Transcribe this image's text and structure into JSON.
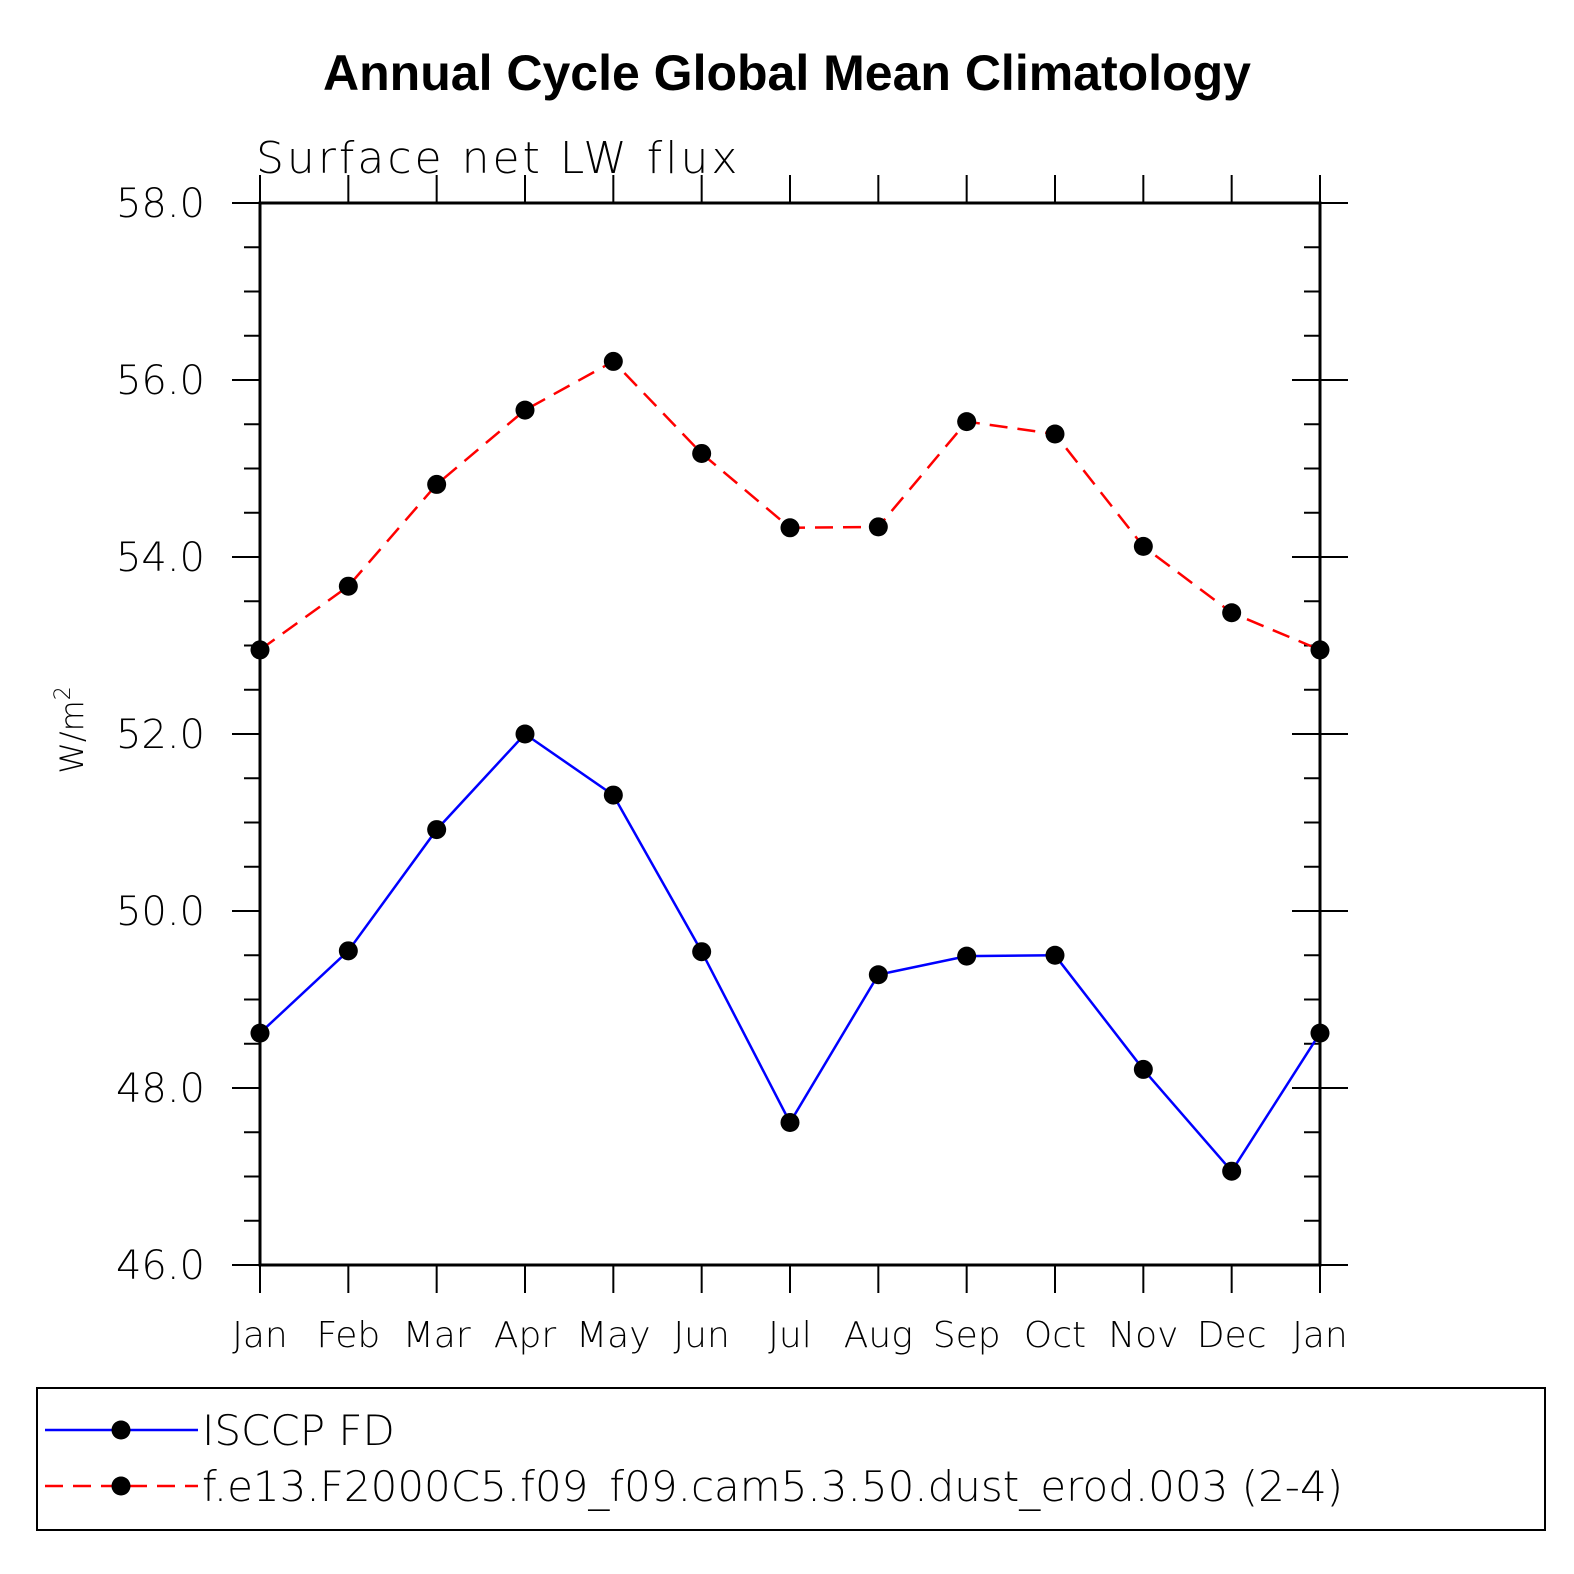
{
  "chart_data": {
    "type": "line",
    "title": "Annual Cycle Global Mean Climatology",
    "subtitle": "Surface net LW flux",
    "ylabel": "W/m",
    "ylabel_superscript": "2",
    "xlabel": "",
    "categories": [
      "Jan",
      "Feb",
      "Mar",
      "Apr",
      "May",
      "Jun",
      "Jul",
      "Aug",
      "Sep",
      "Oct",
      "Nov",
      "Dec",
      "Jan"
    ],
    "ylim": [
      46.0,
      58.0
    ],
    "yticks": [
      "46.0",
      "48.0",
      "50.0",
      "52.0",
      "54.0",
      "56.0",
      "58.0"
    ],
    "ytick_values": [
      46,
      48,
      50,
      52,
      54,
      56,
      58
    ],
    "grid": false,
    "legend_position": "bottom",
    "series": [
      {
        "name": "ISCCP FD",
        "color": "#0000ff",
        "dash": "solid",
        "values": [
          48.62,
          49.55,
          50.92,
          52.0,
          51.31,
          49.54,
          47.61,
          49.28,
          49.49,
          49.5,
          48.21,
          47.06,
          48.62
        ]
      },
      {
        "name": "f.e13.F2000C5.f09_f09.cam5.3.50.dust_erod.003 (2-4)",
        "color": "#ff0000",
        "dash": "dashed",
        "values": [
          52.95,
          53.67,
          54.82,
          55.66,
          56.21,
          55.17,
          54.33,
          54.34,
          55.53,
          55.39,
          54.12,
          53.37,
          52.95
        ]
      }
    ],
    "marker_color": "#000000"
  }
}
